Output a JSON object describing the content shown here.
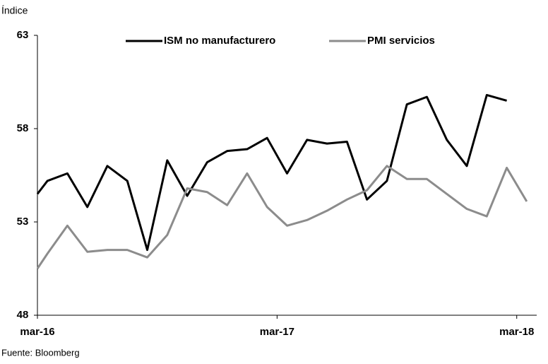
{
  "chart_data": {
    "type": "line",
    "y_label": "Índice",
    "source": "Fuente: Bloomberg",
    "x": [
      0,
      0.5,
      1.5,
      2.5,
      3.5,
      4.5,
      5.5,
      6.5,
      7.5,
      8.5,
      9.5,
      10.5,
      11.5,
      12.5,
      13.5,
      14.5,
      15.5,
      16.5,
      17.5,
      18.5,
      19.5,
      20.5,
      21.5,
      22.5,
      23.5,
      24.5
    ],
    "series": [
      {
        "name": "ISM no manufacturero",
        "color": "#000000",
        "values": [
          54.5,
          55.2,
          55.6,
          53.8,
          56,
          55.2,
          51.5,
          56.3,
          54.4,
          56.2,
          56.8,
          56.9,
          57.5,
          55.6,
          57.4,
          57.2,
          57.3,
          54.2,
          55.2,
          59.3,
          59.7,
          57.4,
          56,
          59.8,
          59.5,
          null
        ]
      },
      {
        "name": "PMI servicios",
        "color": "#8c8c8c",
        "values": [
          50.5,
          51.3,
          52.8,
          51.4,
          51.5,
          51.5,
          51.1,
          52.3,
          54.8,
          54.6,
          53.9,
          55.6,
          53.8,
          52.8,
          53.1,
          53.6,
          54.2,
          54.7,
          56,
          55.3,
          55.3,
          54.5,
          53.7,
          53.3,
          55.9,
          54.1
        ]
      }
    ],
    "xlim": [
      0,
      25
    ],
    "xticks": [
      {
        "value": 0,
        "label": "mar-16"
      },
      {
        "value": 12,
        "label": "mar-17"
      },
      {
        "value": 24,
        "label": "mar-18"
      }
    ],
    "ylim": [
      48,
      63
    ],
    "yticks": [
      48,
      53,
      58,
      63
    ]
  }
}
